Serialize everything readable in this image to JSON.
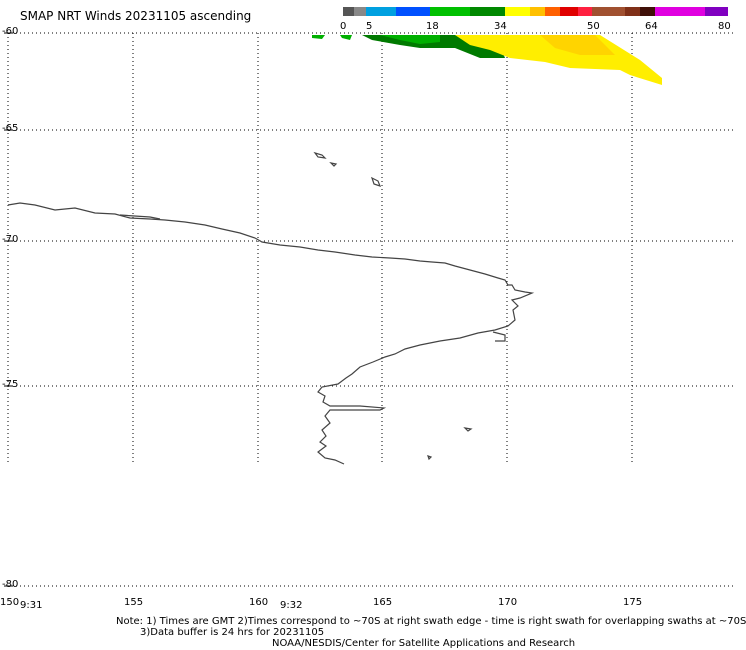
{
  "title": "SMAP NRT Winds 20231105 ascending",
  "colorbar": {
    "labels": [
      "0",
      "5",
      "18",
      "34",
      "50",
      "64",
      "80"
    ],
    "colors": [
      "#555555",
      "#888888",
      "#00a0e0",
      "#0050ff",
      "#00c000",
      "#008800",
      "#ffff00",
      "#ffc000",
      "#ff6000",
      "#e00000",
      "#ff2040",
      "#a05030",
      "#803018",
      "#401008",
      "#e000e0",
      "#8000c0"
    ]
  },
  "y_ticks": [
    "-60",
    "-65",
    "-70",
    "-75",
    "-80"
  ],
  "x_ticks": [
    "150",
    "155",
    "160",
    "165",
    "170",
    "175"
  ],
  "times": [
    "9:31",
    "9:32"
  ],
  "notes": {
    "line1": "Note: 1) Times are GMT 2)Times correspond to ~70S at right swath edge - time is right swath for overlapping swaths at ~70S",
    "line2": "3)Data buffer is 24 hrs for 20231105",
    "line3": "NOAA/NESDIS/Center for Satellite Applications and Research"
  },
  "wind_colors": {
    "green_light": "#00b000",
    "green_dark": "#007a00",
    "yellow": "#ffee00",
    "yellow_orange": "#ffd400"
  }
}
